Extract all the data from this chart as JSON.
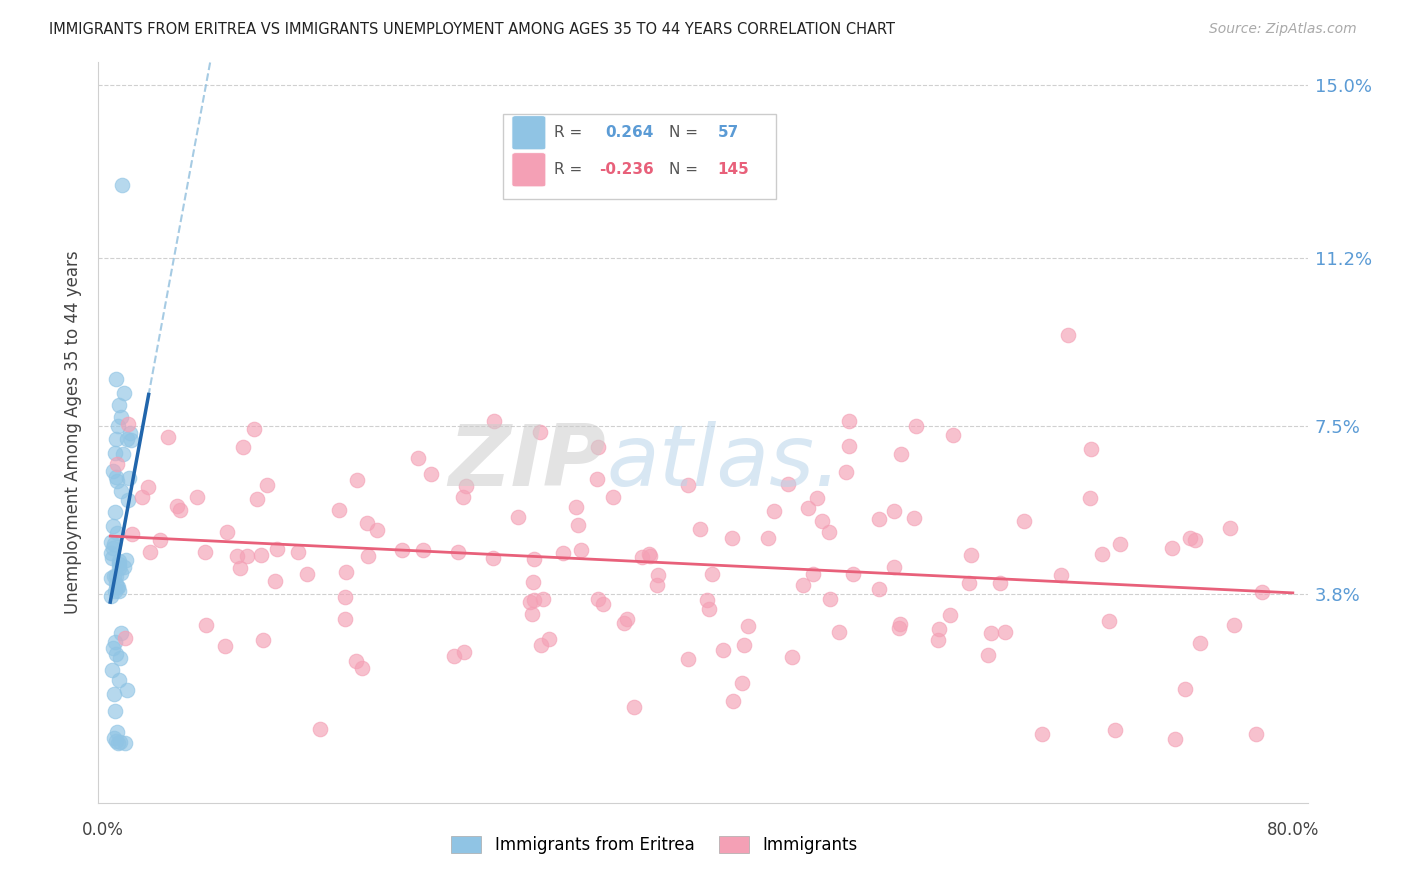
{
  "title": "IMMIGRANTS FROM ERITREA VS IMMIGRANTS UNEMPLOYMENT AMONG AGES 35 TO 44 YEARS CORRELATION CHART",
  "source": "Source: ZipAtlas.com",
  "ylabel": "Unemployment Among Ages 35 to 44 years",
  "yticks": [
    0.0,
    0.038,
    0.075,
    0.112,
    0.15
  ],
  "ytick_labels": [
    "",
    "3.8%",
    "7.5%",
    "11.2%",
    "15.0%"
  ],
  "legend_blue_r": "0.264",
  "legend_blue_n": "57",
  "legend_pink_r": "-0.236",
  "legend_pink_n": "145",
  "legend_label_blue": "Immigrants from Eritrea",
  "legend_label_pink": "Immigrants",
  "blue_color": "#90c4e4",
  "pink_color": "#f4a0b5",
  "blue_line_color": "#2166ac",
  "pink_line_color": "#e8607a",
  "dash_line_color": "#90bedd",
  "xlim_max": 0.8,
  "ylim_max": 0.155,
  "ylim_min": -0.008
}
